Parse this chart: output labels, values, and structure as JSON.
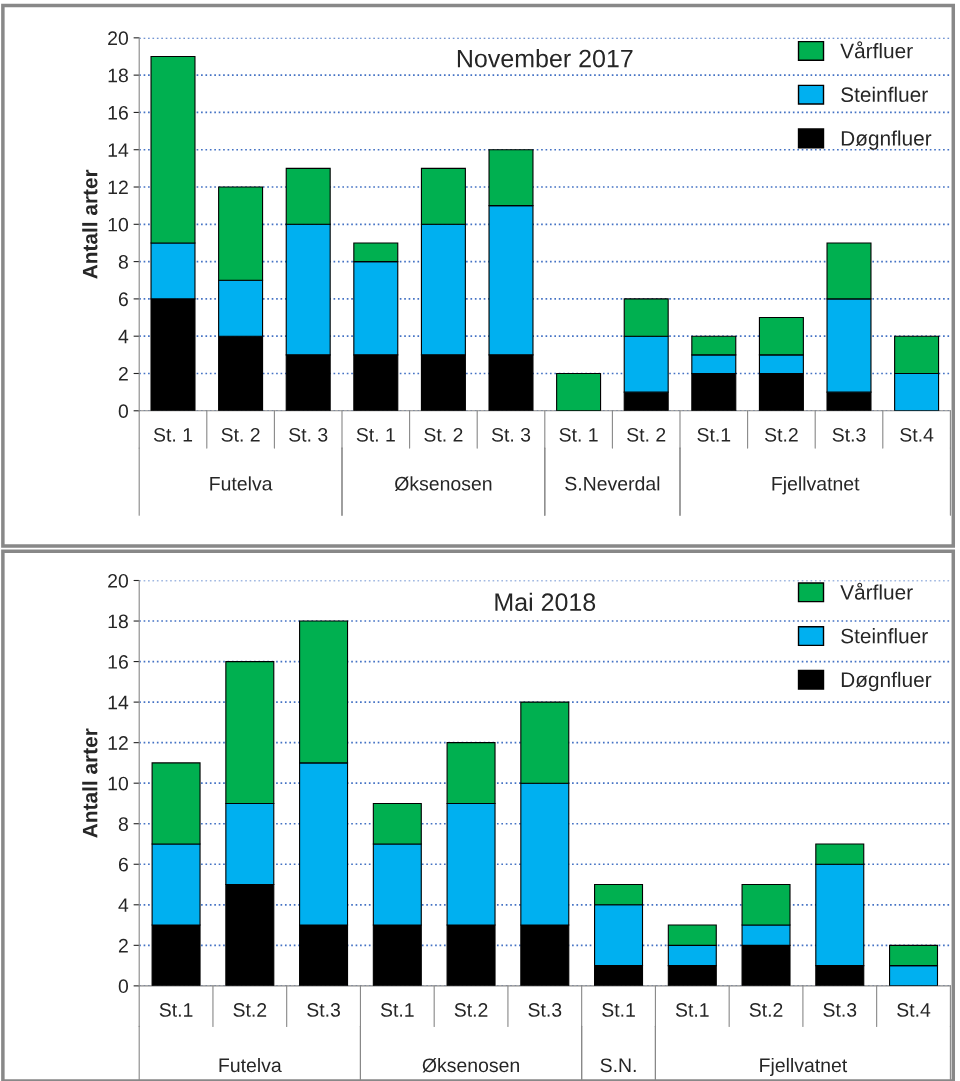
{
  "chart_data": [
    {
      "type": "bar",
      "title": "November 2017",
      "ylabel": "Antall arter",
      "stacked": true,
      "categories": [
        "St. 1",
        "St. 2",
        "St. 3",
        "St. 1",
        "St. 2",
        "St. 3",
        "St. 1",
        "St. 2",
        "St.1",
        "St.2",
        "St.3",
        "St.4"
      ],
      "series": [
        {
          "name": "Døgnfluer",
          "color": "#000000",
          "values": [
            6,
            4,
            3,
            3,
            3,
            3,
            0,
            1,
            2,
            2,
            1,
            0
          ]
        },
        {
          "name": "Steinfluer",
          "color": "#00b0f0",
          "values": [
            3,
            3,
            7,
            5,
            7,
            8,
            0,
            3,
            1,
            1,
            5,
            2
          ]
        },
        {
          "name": "Vårfluer",
          "color": "#00b050",
          "values": [
            10,
            5,
            3,
            1,
            3,
            3,
            2,
            2,
            1,
            2,
            3,
            2
          ]
        }
      ],
      "annotations": [
        "Futelva",
        "Øksenosen",
        "S.Neverdal",
        "Fjellvatnet"
      ],
      "ylim": [
        0,
        20
      ],
      "yticks": [
        0,
        2,
        4,
        6,
        8,
        10,
        12,
        14,
        16,
        18,
        20
      ],
      "grid": "y",
      "legend": "top right"
    },
    {
      "type": "bar",
      "title": "Mai 2018",
      "ylabel": "Antall arter",
      "stacked": true,
      "categories": [
        "St.1",
        "St.2",
        "St.3",
        "St.1",
        "St.2",
        "St.3",
        "St.1",
        "St.1",
        "St.2",
        "St.3",
        "St.4"
      ],
      "series": [
        {
          "name": "Døgnfluer",
          "color": "#000000",
          "values": [
            3,
            5,
            3,
            3,
            3,
            3,
            1,
            1,
            2,
            1,
            0
          ]
        },
        {
          "name": "Steinfluer",
          "color": "#00b0f0",
          "values": [
            4,
            4,
            8,
            4,
            6,
            7,
            3,
            1,
            1,
            5,
            1
          ]
        },
        {
          "name": "Vårfluer",
          "color": "#00b050",
          "values": [
            4,
            7,
            7,
            2,
            3,
            4,
            1,
            1,
            2,
            1,
            1
          ]
        }
      ],
      "annotations": [
        "Futelva",
        "Øksenosen",
        "S.N.",
        "Fjellvatnet"
      ],
      "ylim": [
        0,
        20
      ],
      "yticks": [
        0,
        2,
        4,
        6,
        8,
        10,
        12,
        14,
        16,
        18,
        20
      ],
      "grid": "y",
      "legend": "top right"
    }
  ]
}
